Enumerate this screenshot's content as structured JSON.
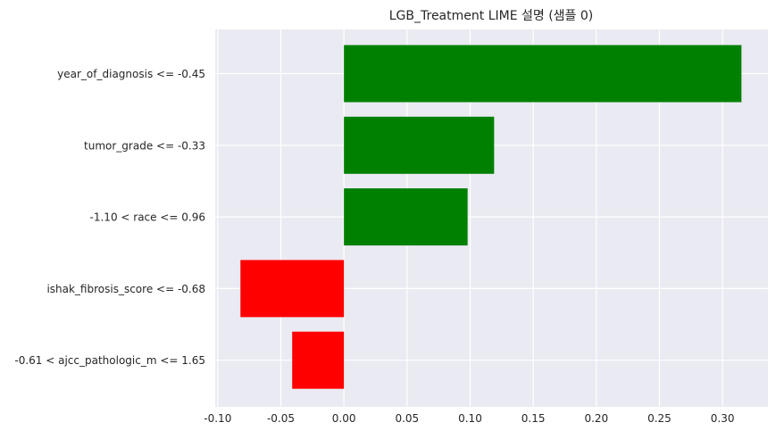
{
  "chart_data": {
    "type": "bar",
    "orientation": "horizontal",
    "title": "LGB_Treatment LIME 설명 (샘플 0)",
    "xlabel": "",
    "ylabel": "",
    "categories": [
      "year_of_diagnosis <= -0.45",
      "tumor_grade <= -0.33",
      "-1.10 < race <= 0.96",
      "ishak_fibrosis_score <= -0.68",
      "-0.61 < ajcc_pathologic_m <= 1.65"
    ],
    "values": [
      0.315,
      0.119,
      0.098,
      -0.082,
      -0.041
    ],
    "xlim": [
      -0.102,
      0.336
    ],
    "xticks": [
      -0.1,
      -0.05,
      0.0,
      0.05,
      0.1,
      0.15,
      0.2,
      0.25,
      0.3
    ],
    "xtick_labels": [
      "-0.10",
      "-0.05",
      "0.00",
      "0.05",
      "0.10",
      "0.15",
      "0.20",
      "0.25",
      "0.30"
    ],
    "grid": true,
    "legend": "none",
    "colors": {
      "positive": "#008000",
      "negative": "#ff0000",
      "background": "#eaeaf2",
      "grid": "#ffffff",
      "text": "#262626"
    }
  }
}
